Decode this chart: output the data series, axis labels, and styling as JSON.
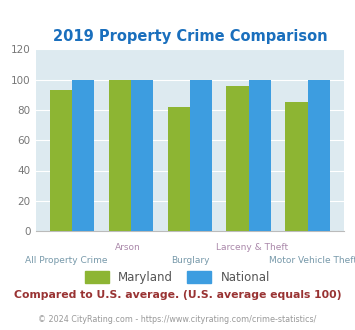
{
  "title": "2019 Property Crime Comparison",
  "title_color": "#1a6fbd",
  "group_labels_top": [
    "",
    "Arson",
    "",
    "Larceny & Theft",
    ""
  ],
  "group_labels_bot": [
    "All Property Crime",
    "",
    "Burglary",
    "",
    "Motor Vehicle Theft"
  ],
  "maryland_values": [
    93,
    100,
    82,
    96,
    85
  ],
  "national_values": [
    100,
    100,
    100,
    100,
    100
  ],
  "maryland_color": "#8db533",
  "national_color": "#3d9de0",
  "background_color": "#ddeaf0",
  "ylim": [
    0,
    120
  ],
  "yticks": [
    0,
    20,
    40,
    60,
    80,
    100,
    120
  ],
  "legend_maryland": "Maryland",
  "legend_national": "National",
  "footer_text": "Compared to U.S. average. (U.S. average equals 100)",
  "footer_color": "#993333",
  "copyright_text": "© 2024 CityRating.com - https://www.cityrating.com/crime-statistics/",
  "copyright_color": "#999999",
  "bar_width": 0.38,
  "group_positions": [
    0,
    1,
    2,
    3,
    4
  ],
  "label_color_top": "#aa88aa",
  "label_color_bot": "#7799aa"
}
